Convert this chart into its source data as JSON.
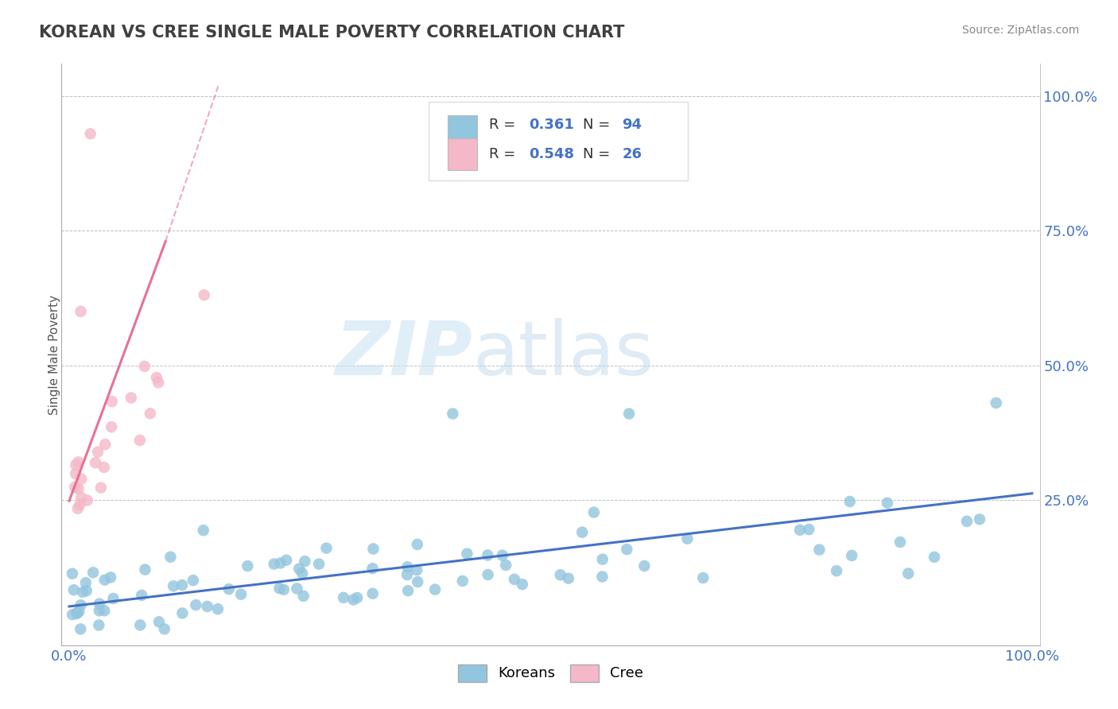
{
  "title": "KOREAN VS CREE SINGLE MALE POVERTY CORRELATION CHART",
  "source": "Source: ZipAtlas.com",
  "ylabel": "Single Male Poverty",
  "xlim": [
    0.0,
    1.0
  ],
  "ylim": [
    0.0,
    1.05
  ],
  "xtick_vals": [
    0.0,
    1.0
  ],
  "xtick_labels": [
    "0.0%",
    "100.0%"
  ],
  "ytick_vals": [
    0.25,
    0.5,
    0.75,
    1.0
  ],
  "ytick_labels": [
    "25.0%",
    "50.0%",
    "75.0%",
    "100.0%"
  ],
  "legend_r1": "0.361",
  "legend_n1": "94",
  "legend_r2": "0.548",
  "legend_n2": "26",
  "korean_color": "#92c5de",
  "cree_color": "#f4b8c8",
  "trendline_korean_color": "#4472c4",
  "trendline_cree_color": "#e87096",
  "watermark_zip": "ZIP",
  "watermark_atlas": "atlas",
  "background_color": "#ffffff",
  "grid_color": "#c0c0c0",
  "title_color": "#404040",
  "axis_label_color": "#4472c4",
  "tick_color": "#4472c4",
  "note_color": "#888888"
}
